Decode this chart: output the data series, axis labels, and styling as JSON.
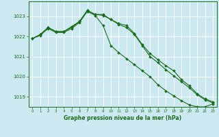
{
  "background_color": "#cce8f0",
  "grid_color": "#ffffff",
  "line_color": "#1a6e1a",
  "marker_color": "#1a6e1a",
  "xlabel": "Graphe pression niveau de la mer (hPa)",
  "xlabel_color": "#1a6e1a",
  "ylim": [
    1018.5,
    1023.75
  ],
  "yticks": [
    1019,
    1020,
    1021,
    1022,
    1023
  ],
  "xlim": [
    -0.5,
    23.5
  ],
  "xticks": [
    0,
    1,
    2,
    3,
    4,
    5,
    6,
    7,
    8,
    9,
    10,
    11,
    12,
    13,
    14,
    15,
    16,
    17,
    18,
    19,
    20,
    21,
    22,
    23
  ],
  "series1_x": [
    0,
    1,
    2,
    3,
    4,
    5,
    6,
    7,
    8,
    9,
    10,
    11,
    12,
    13,
    14,
    15,
    16,
    17,
    18,
    19,
    20,
    21,
    22,
    23
  ],
  "series1_y": [
    1021.9,
    1022.1,
    1022.45,
    1022.25,
    1022.25,
    1022.5,
    1022.75,
    1023.3,
    1023.1,
    1023.1,
    1022.85,
    1022.65,
    1022.55,
    1022.15,
    1021.6,
    1021.15,
    1020.85,
    1020.55,
    1020.3,
    1019.85,
    1019.55,
    1019.15,
    1018.9,
    1018.75
  ],
  "series2_x": [
    0,
    1,
    2,
    3,
    4,
    5,
    6,
    7,
    8,
    9,
    10,
    11,
    12,
    13,
    14,
    15,
    16,
    17,
    18,
    19,
    20,
    21,
    22,
    23
  ],
  "series2_y": [
    1021.9,
    1022.1,
    1022.45,
    1022.25,
    1022.25,
    1022.45,
    1022.75,
    1023.3,
    1023.1,
    1023.05,
    1022.85,
    1022.6,
    1022.45,
    1022.1,
    1021.55,
    1021.0,
    1020.7,
    1020.35,
    1020.05,
    1019.75,
    1019.45,
    1019.1,
    1018.85,
    1018.7
  ],
  "series3_x": [
    0,
    1,
    2,
    3,
    4,
    5,
    6,
    7,
    8,
    9,
    10,
    11,
    12,
    13,
    14,
    15,
    16,
    17,
    18,
    19,
    20,
    21,
    22,
    23
  ],
  "series3_y": [
    1021.9,
    1022.05,
    1022.4,
    1022.2,
    1022.2,
    1022.4,
    1022.7,
    1023.25,
    1023.05,
    1022.55,
    1021.55,
    1021.2,
    1020.9,
    1020.6,
    1020.3,
    1020.0,
    1019.6,
    1019.3,
    1019.05,
    1018.8,
    1018.6,
    1018.5,
    1018.5,
    1018.65
  ]
}
